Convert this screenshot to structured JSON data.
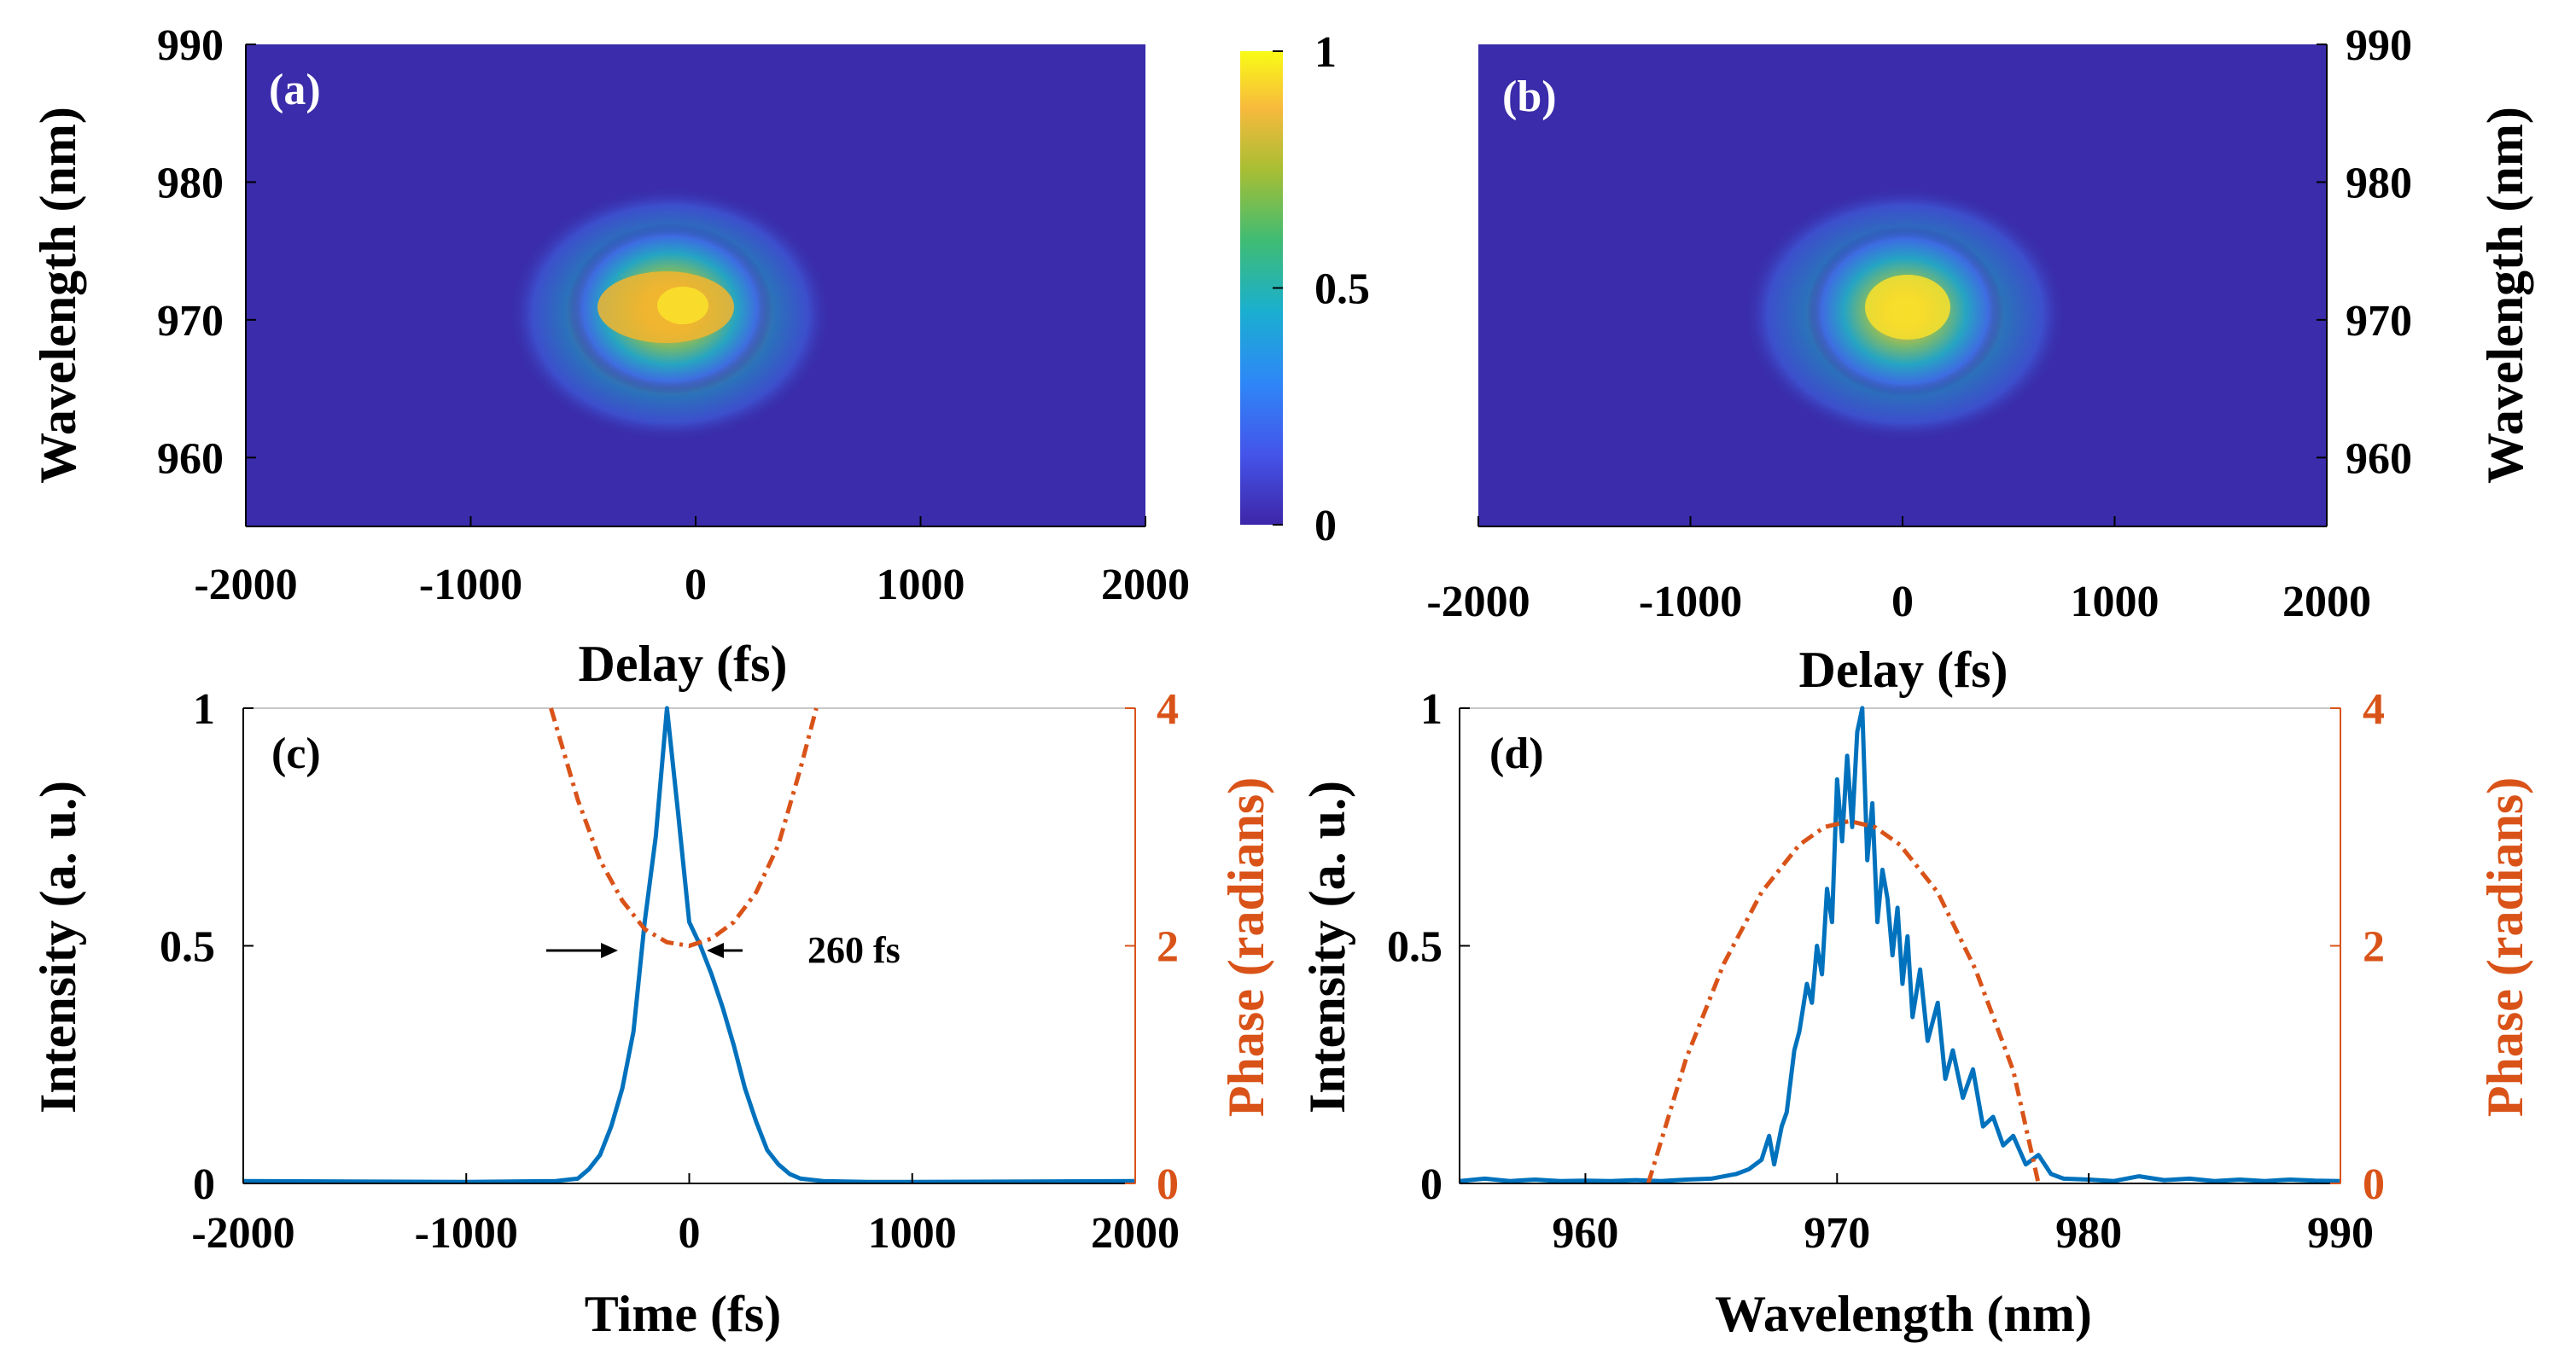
{
  "colors": {
    "intensity": "#0072BD",
    "phase": "#D95319",
    "background": "#3A2CAA"
  },
  "chart_data": [
    {
      "id": "a",
      "type": "heatmap",
      "panel_label": "(a)",
      "xlabel": "Delay (fs)",
      "ylabel": "Wavelength (nm)",
      "xlim": [
        -2000,
        2000
      ],
      "ylim": [
        955,
        990
      ],
      "xticks": [
        "-2000",
        "-1000",
        "0",
        "1000",
        "2000"
      ],
      "yticks": [
        "960",
        "970",
        "980",
        "990"
      ],
      "peak": {
        "delay": -50,
        "wavelength": 970.5
      },
      "colorbar": {
        "ticks": [
          "0",
          "0.5",
          "1"
        ],
        "range": [
          0,
          1
        ]
      }
    },
    {
      "id": "b",
      "type": "heatmap",
      "panel_label": "(b)",
      "xlabel": "Delay (fs)",
      "ylabel": "Wavelength (nm)",
      "xlim": [
        -2000,
        2000
      ],
      "ylim": [
        955,
        990
      ],
      "xticks": [
        "-2000",
        "-1000",
        "0",
        "1000",
        "2000"
      ],
      "yticks": [
        "960",
        "970",
        "980",
        "990"
      ],
      "peak": {
        "delay": 50,
        "wavelength": 970.5
      }
    },
    {
      "id": "c",
      "type": "line",
      "panel_label": "(c)",
      "xlabel": "Time (fs)",
      "ylabel_left": "Intensity (a. u.)",
      "ylabel_right": "Phase (radians)",
      "xlim": [
        -2000,
        2000
      ],
      "ylim_left": [
        0,
        1
      ],
      "ylim_right": [
        0,
        4
      ],
      "xticks": [
        "-2000",
        "-1000",
        "0",
        "1000",
        "2000"
      ],
      "yticks_left": [
        "0",
        "0.5",
        "1"
      ],
      "yticks_right": [
        "0",
        "2",
        "4"
      ],
      "annotation": "260 fs",
      "series": [
        {
          "name": "Intensity",
          "axis": "left",
          "x": [
            -2000,
            -1000,
            -600,
            -500,
            -450,
            -400,
            -350,
            -300,
            -250,
            -200,
            -150,
            -100,
            -50,
            0,
            50,
            100,
            150,
            200,
            250,
            300,
            350,
            400,
            450,
            500,
            600,
            800,
            1000,
            2000
          ],
          "y": [
            0.005,
            0.003,
            0.005,
            0.01,
            0.03,
            0.06,
            0.12,
            0.2,
            0.32,
            0.55,
            0.73,
            1.0,
            0.78,
            0.55,
            0.5,
            0.44,
            0.37,
            0.29,
            0.2,
            0.13,
            0.07,
            0.04,
            0.02,
            0.01,
            0.005,
            0.003,
            0.003,
            0.005
          ]
        },
        {
          "name": "Phase",
          "axis": "right",
          "style": "dash-dot",
          "x": [
            -620,
            -500,
            -400,
            -300,
            -200,
            -100,
            0,
            100,
            200,
            300,
            400,
            500,
            570
          ],
          "y": [
            4.0,
            3.23,
            2.72,
            2.38,
            2.14,
            2.03,
            2.0,
            2.06,
            2.2,
            2.45,
            2.85,
            3.5,
            4.0
          ]
        }
      ]
    },
    {
      "id": "d",
      "type": "line",
      "panel_label": "(d)",
      "xlabel": "Wavelength (nm)",
      "ylabel_left": "Intensity (a. u.)",
      "ylabel_right": "Phase (radians)",
      "xlim": [
        955,
        990
      ],
      "ylim_left": [
        0,
        1
      ],
      "ylim_right": [
        0,
        4
      ],
      "xticks": [
        "960",
        "970",
        "980",
        "990"
      ],
      "yticks_left": [
        "0",
        "0.5",
        "1"
      ],
      "yticks_right": [
        "0",
        "2",
        "4"
      ],
      "series": [
        {
          "name": "Intensity",
          "axis": "left",
          "x": [
            955,
            956,
            957,
            958,
            959,
            960,
            961,
            962,
            963,
            964,
            965,
            966,
            966.5,
            967,
            967.3,
            967.5,
            967.8,
            968,
            968.3,
            968.5,
            968.8,
            969,
            969.2,
            969.4,
            969.6,
            969.8,
            970,
            970.2,
            970.4,
            970.6,
            970.8,
            971,
            971.2,
            971.4,
            971.6,
            971.8,
            972,
            972.2,
            972.4,
            972.6,
            972.8,
            973,
            973.3,
            973.6,
            974,
            974.3,
            974.6,
            975,
            975.4,
            975.8,
            976.2,
            976.6,
            977,
            977.5,
            978,
            978.5,
            979,
            980,
            981,
            982,
            983,
            984,
            985,
            986,
            987,
            988,
            989,
            990
          ],
          "y": [
            0.005,
            0.01,
            0.005,
            0.008,
            0.005,
            0.006,
            0.005,
            0.007,
            0.005,
            0.008,
            0.01,
            0.02,
            0.03,
            0.05,
            0.1,
            0.04,
            0.12,
            0.15,
            0.28,
            0.32,
            0.42,
            0.38,
            0.5,
            0.44,
            0.62,
            0.55,
            0.85,
            0.72,
            0.9,
            0.75,
            0.95,
            1.0,
            0.68,
            0.8,
            0.55,
            0.66,
            0.6,
            0.48,
            0.58,
            0.42,
            0.52,
            0.35,
            0.45,
            0.3,
            0.38,
            0.22,
            0.28,
            0.18,
            0.24,
            0.12,
            0.14,
            0.08,
            0.1,
            0.04,
            0.06,
            0.02,
            0.01,
            0.008,
            0.005,
            0.015,
            0.007,
            0.01,
            0.005,
            0.008,
            0.005,
            0.008,
            0.006,
            0.005
          ]
        },
        {
          "name": "Phase",
          "axis": "right",
          "style": "dash-dot",
          "x": [
            962.5,
            964,
            965.5,
            967,
            968.5,
            969.5,
            970.5,
            971.5,
            972.5,
            974,
            975.5,
            977,
            978
          ],
          "y": [
            0.0,
            1.05,
            1.85,
            2.45,
            2.85,
            3.0,
            3.05,
            3.0,
            2.85,
            2.45,
            1.8,
            0.95,
            0.0
          ]
        }
      ]
    }
  ]
}
